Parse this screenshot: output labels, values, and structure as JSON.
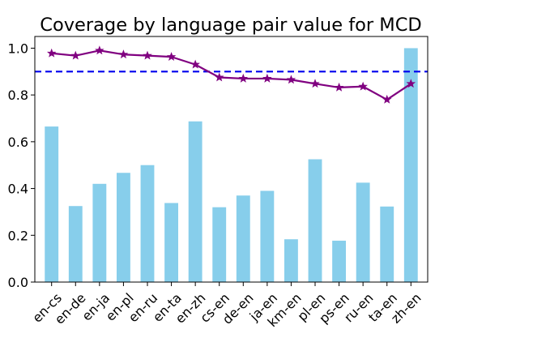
{
  "chart_data": {
    "type": "bar",
    "title": "Coverage by language pair value for MCD",
    "xlabel": "",
    "ylabel": "",
    "categories": [
      "en-cs",
      "en-de",
      "en-ja",
      "en-pl",
      "en-ru",
      "en-ta",
      "en-zh",
      "cs-en",
      "de-en",
      "ja-en",
      "km-en",
      "pl-en",
      "ps-en",
      "ru-en",
      "ta-en",
      "zh-en"
    ],
    "ylim": [
      0.0,
      1.05
    ],
    "yticks": [
      0.0,
      0.2,
      0.4,
      0.6,
      0.8,
      1.0
    ],
    "ytick_labels": [
      "0.0",
      "0.2",
      "0.4",
      "0.6",
      "0.8",
      "1.0"
    ],
    "grid": false,
    "legend": "none",
    "series": [
      {
        "kind": "bar",
        "color": "#87ceeb",
        "values": [
          0.665,
          0.325,
          0.42,
          0.467,
          0.5,
          0.338,
          0.687,
          0.32,
          0.37,
          0.39,
          0.183,
          0.525,
          0.177,
          0.425,
          0.323,
          1.0
        ]
      },
      {
        "kind": "line",
        "color": "#800080",
        "marker": "star",
        "values": [
          0.978,
          0.968,
          0.99,
          0.973,
          0.968,
          0.963,
          0.93,
          0.875,
          0.87,
          0.87,
          0.865,
          0.848,
          0.832,
          0.836,
          0.78,
          0.848
        ]
      }
    ],
    "reference_line": {
      "y": 0.9,
      "color": "#0000ee",
      "style": "dashed"
    }
  }
}
